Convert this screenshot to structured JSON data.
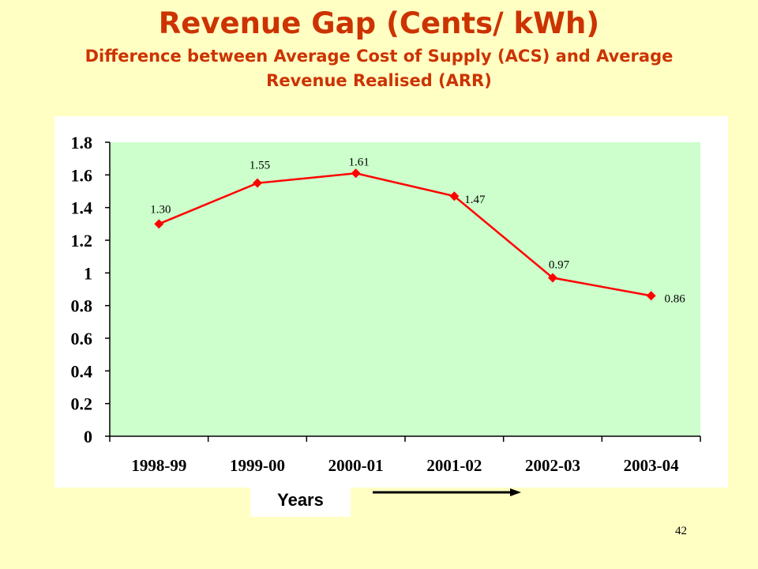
{
  "slide": {
    "page_number": "42"
  },
  "colors": {
    "background": "#ffffc4",
    "title": "#cc3300",
    "plot_area": "#ccffcc",
    "series_line": "#ff0000",
    "series_marker": "#ff0000"
  },
  "chart_data": {
    "type": "line",
    "title": "Revenue Gap (Cents/ kWh)",
    "subtitle": "Difference between Average Cost of Supply (ACS) and Average Revenue Realised (ARR)",
    "xlabel": "Years",
    "ylabel": "",
    "categories": [
      "1998-99",
      "1999-00",
      "2000-01",
      "2001-02",
      "2002-03",
      "2003-04"
    ],
    "series": [
      {
        "values": [
          1.3,
          1.55,
          1.61,
          1.47,
          0.97,
          0.86
        ],
        "data_labels": [
          "1.30",
          "1.55",
          "1.61",
          "1.47",
          "0.97",
          "0.86"
        ]
      }
    ],
    "ylim": [
      0,
      1.8
    ],
    "yticks": [
      "0",
      "0.2",
      "0.4",
      "0.6",
      "0.8",
      "1",
      "1.2",
      "1.4",
      "1.6",
      "1.8"
    ],
    "grid": false,
    "legend": "none",
    "marker": "diamond"
  }
}
